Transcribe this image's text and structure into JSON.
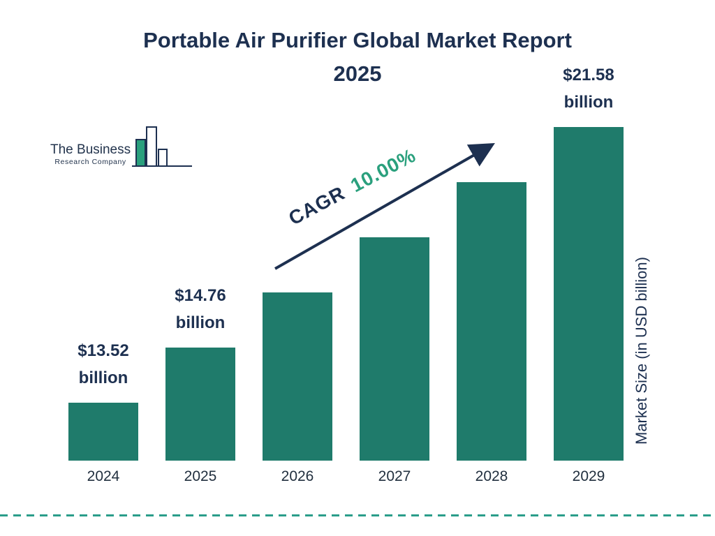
{
  "title": {
    "line1": "Portable Air Purifier Global Market Report",
    "line2": "2025"
  },
  "logo": {
    "line1": "The Business",
    "line2": "Research Company"
  },
  "annotation": {
    "cagr_label": "CAGR",
    "cagr_value": "10.00%"
  },
  "colors": {
    "bar": "#1f7b6b",
    "navy": "#1d3050",
    "teal_accent": "#2aa07d",
    "dashed_line": "#2a9d8a"
  },
  "chart_data": {
    "type": "bar",
    "title": "Portable Air Purifier Global Market Report 2025",
    "categories": [
      "2024",
      "2025",
      "2026",
      "2027",
      "2028",
      "2029"
    ],
    "values": [
      13.52,
      14.76,
      16.24,
      17.86,
      19.64,
      21.58
    ],
    "data_labels": {
      "2024": [
        "$13.52",
        "billion"
      ],
      "2025": [
        "$14.76",
        "billion"
      ],
      "2029": [
        "$21.58",
        "billion"
      ]
    },
    "ylabel": "Market Size (in USD billion)",
    "annotation": "CAGR 10.00%",
    "bar_color": "#1f7b6b",
    "legend": "none",
    "grid": "off"
  }
}
